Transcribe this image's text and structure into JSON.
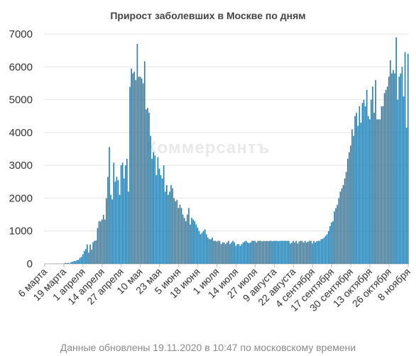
{
  "chart_data": {
    "type": "bar",
    "title": "Прирост заболевших в Москве по дням",
    "xlabel": "",
    "ylabel": "",
    "ylim": [
      0,
      7000
    ],
    "yticks": [
      0,
      1000,
      2000,
      3000,
      4000,
      5000,
      6000,
      7000
    ],
    "grid": true,
    "legend": "none",
    "bar_color": "#2a7ca8",
    "date_range": [
      "2020-03-06",
      "2020-11-19"
    ],
    "xtick_labels": [
      "6 марта",
      "19 марта",
      "1 апреля",
      "14 апреля",
      "27 апреля",
      "10 мая",
      "23 мая",
      "5 июня",
      "18 июня",
      "1 июля",
      "14 июля",
      "27 июля",
      "9 августа",
      "22 августа",
      "4 сентября",
      "17 сентября",
      "30 сентября",
      "13 октября",
      "26 октября",
      "8 ноября"
    ],
    "values": [
      1,
      2,
      0,
      1,
      2,
      3,
      5,
      1,
      8,
      4,
      3,
      5,
      4,
      9,
      27,
      20,
      30,
      15,
      50,
      60,
      85,
      80,
      110,
      120,
      180,
      210,
      290,
      390,
      450,
      590,
      340,
      590,
      430,
      660,
      700,
      710,
      1090,
      1300,
      1290,
      1350,
      1490,
      1350,
      2000,
      2650,
      3560,
      2100,
      1960,
      3080,
      2500,
      2650,
      2550,
      2100,
      3000,
      3080,
      2600,
      3000,
      3200,
      2200,
      5390,
      5950,
      5800,
      5850,
      5600,
      6700,
      5700,
      5700,
      5650,
      5500,
      6170,
      4700,
      4750,
      4600,
      3900,
      3200,
      3400,
      3300,
      2700,
      3250,
      2900,
      2700,
      2600,
      3000,
      2200,
      2400,
      2100,
      2200,
      2400,
      2300,
      2000,
      1900,
      1950,
      1700,
      1800,
      1700,
      1500,
      1400,
      1300,
      1500,
      1700,
      1200,
      1400,
      1350,
      1300,
      1200,
      1100,
      1000,
      900,
      950,
      1000,
      1050,
      900,
      800,
      750,
      750,
      800,
      700,
      700,
      680,
      700,
      700,
      600,
      650,
      650,
      600,
      650,
      700,
      600,
      650,
      700,
      650,
      550,
      600,
      600,
      550,
      600,
      650,
      680,
      700,
      650,
      630,
      650,
      700,
      700,
      700,
      650,
      700,
      700,
      700,
      680,
      700,
      690,
      700,
      690,
      700,
      700,
      690,
      700,
      700,
      700,
      690,
      700,
      700,
      700,
      700,
      700,
      700,
      700,
      620,
      640,
      700,
      650,
      700,
      620,
      680,
      700,
      700,
      650,
      700,
      650,
      670,
      700,
      700,
      620,
      700,
      650,
      690,
      700,
      700,
      750,
      760,
      800,
      850,
      900,
      1000,
      1150,
      1260,
      1300,
      1600,
      1700,
      1800,
      2000,
      2200,
      2300,
      2400,
      2600,
      2800,
      3200,
      3400,
      3600,
      4100,
      3900,
      4500,
      4600,
      4200,
      4800,
      4300,
      4900,
      5000,
      4800,
      5300,
      4500,
      4400,
      5000,
      5400,
      4600,
      5600,
      4400,
      4400,
      4400,
      4800,
      4800,
      5200,
      5300,
      5400,
      5700,
      6200,
      5800,
      5900,
      5800,
      6900,
      5000,
      5700,
      5800,
      6000,
      5100,
      6450,
      4150,
      6400
    ]
  },
  "watermark": "Коммерсантъ",
  "footer_text": "Данные обновлены 19.11.2020 в 10:47 по московскому времени"
}
